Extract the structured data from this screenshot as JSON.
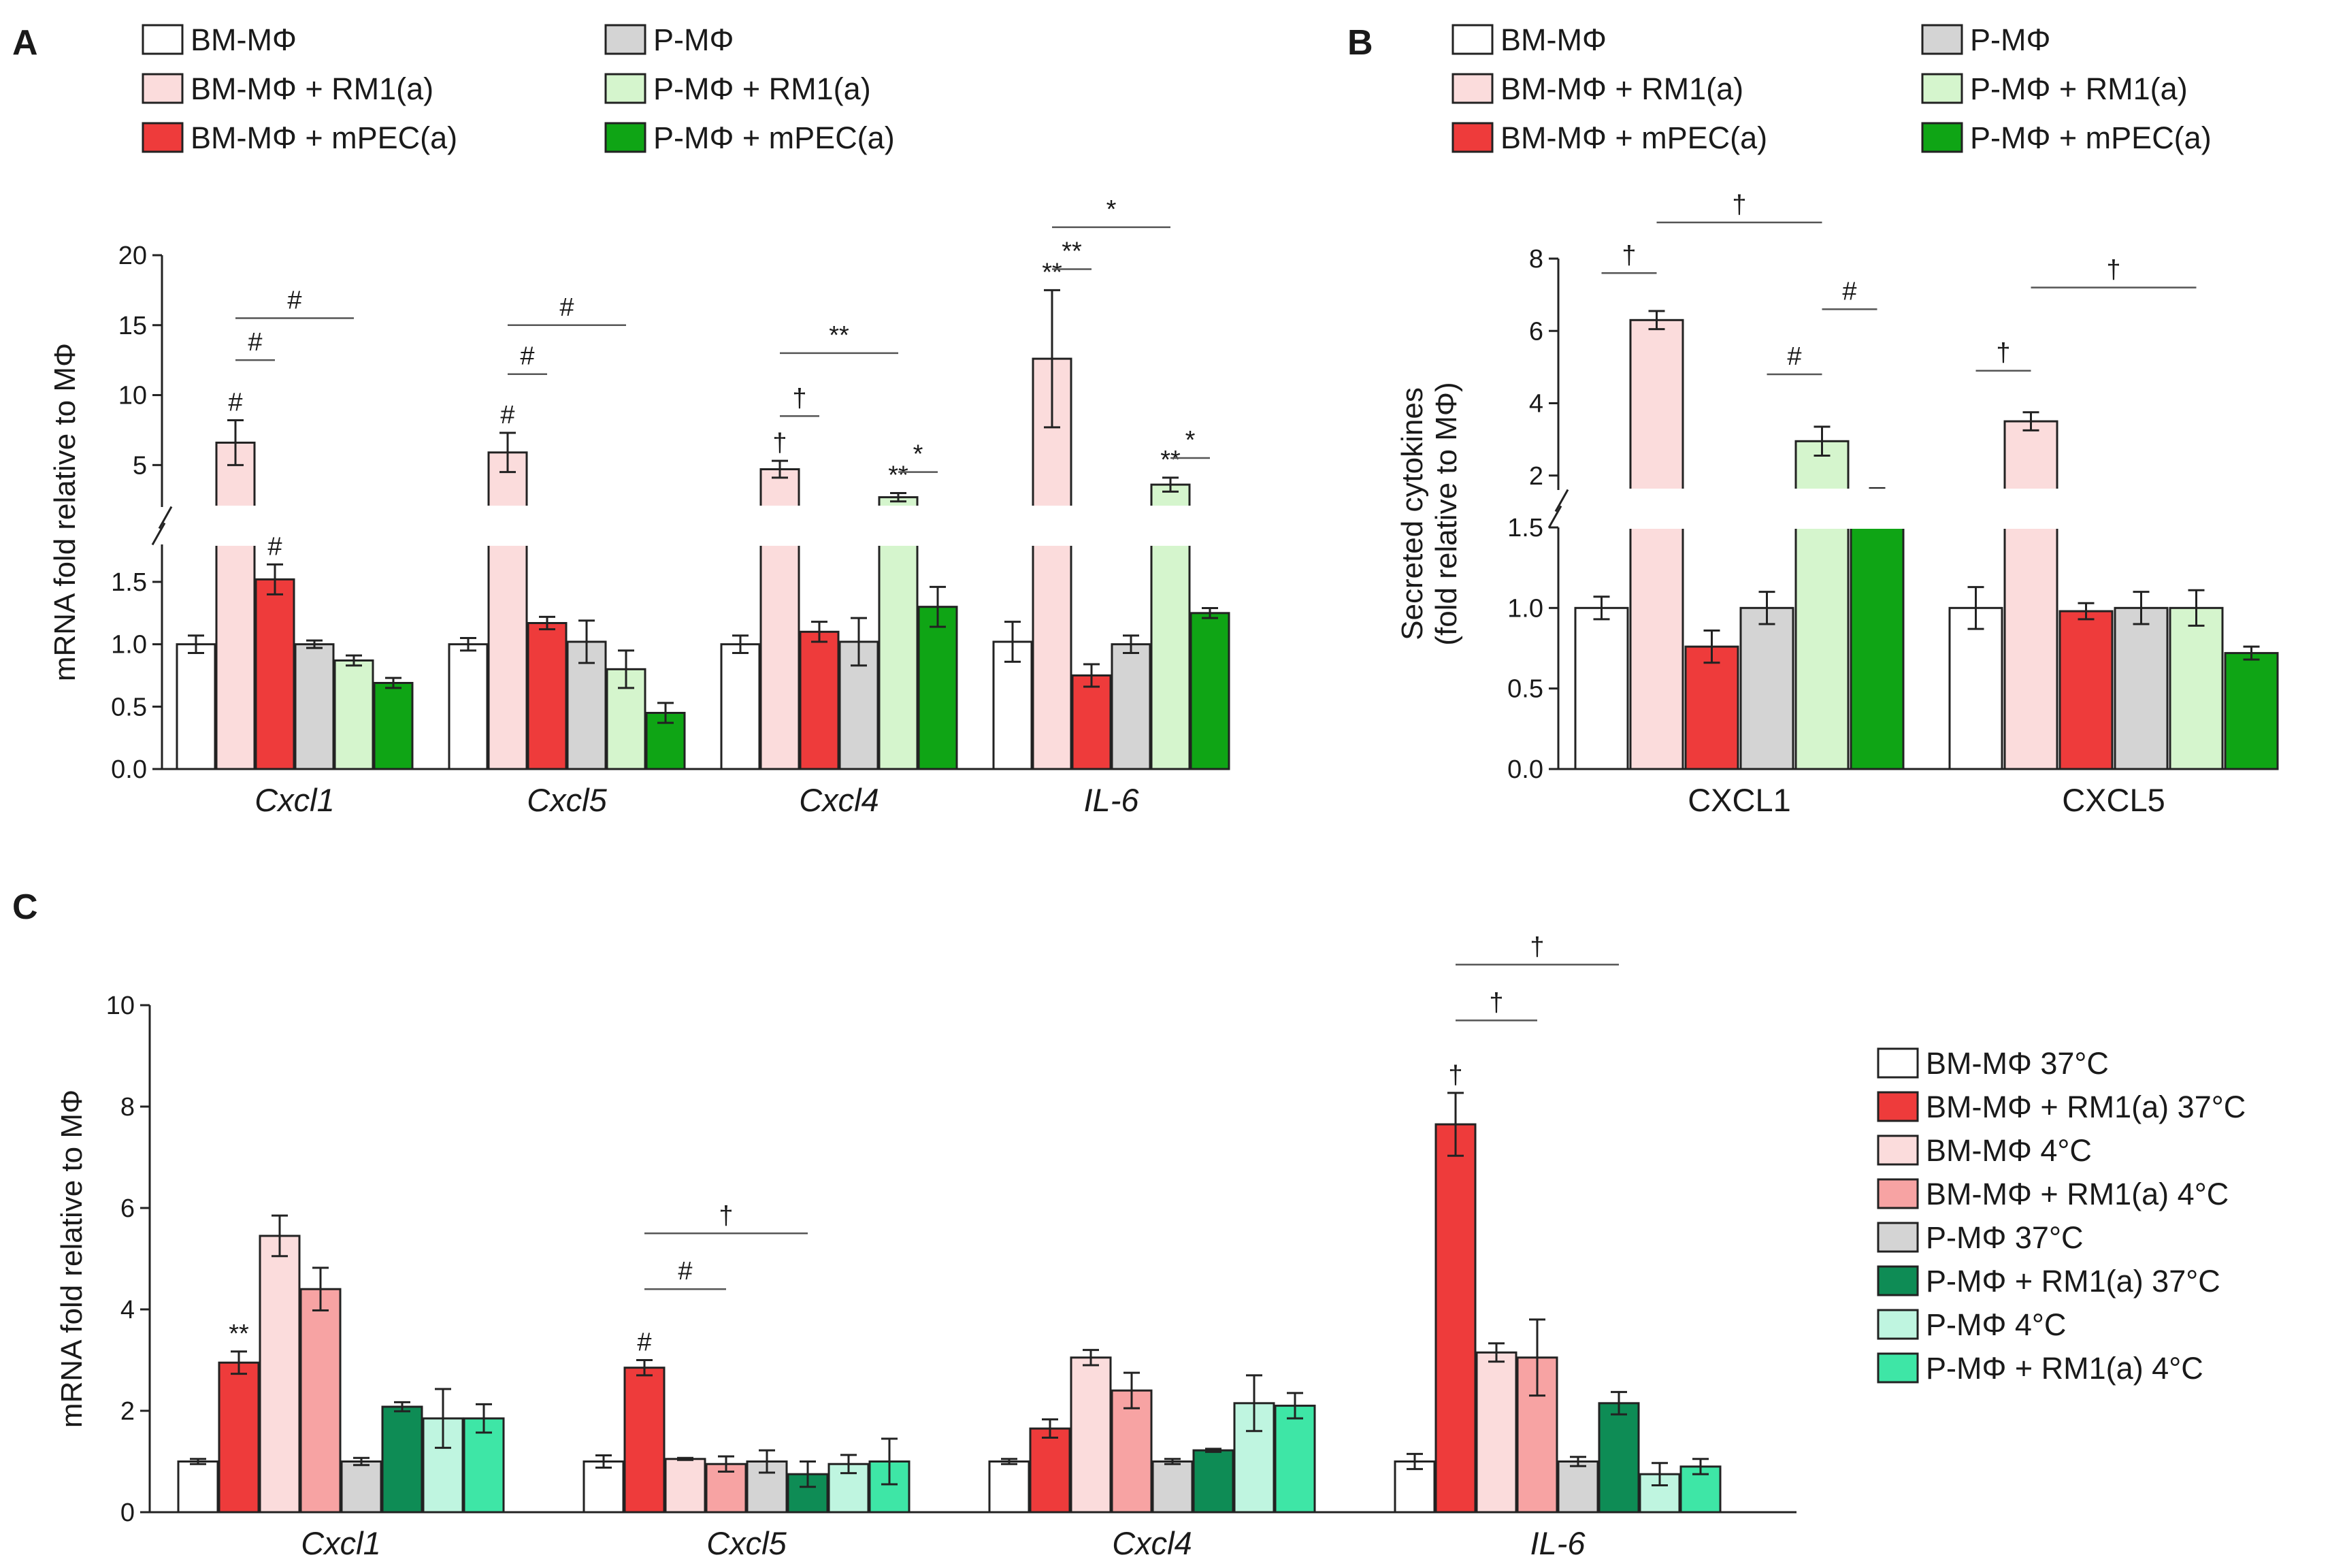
{
  "panels": {
    "A": {
      "label": "A"
    },
    "B": {
      "label": "B"
    },
    "C": {
      "label": "C"
    }
  },
  "legend_AB": [
    {
      "name": "BM-MΦ",
      "color": "#ffffff"
    },
    {
      "name": "BM-MΦ + RM1(a)",
      "color": "#fbdcdc"
    },
    {
      "name": "BM-MΦ + mPEC(a)",
      "color": "#ee3b3b"
    },
    {
      "name": "P-MΦ",
      "color": "#d4d4d4"
    },
    {
      "name": "P-MΦ + RM1(a)",
      "color": "#d5f5cd"
    },
    {
      "name": "P-MΦ + mPEC(a)",
      "color": "#0fa515"
    }
  ],
  "legend_C": [
    {
      "name": "BM-MΦ 37°C",
      "color": "#ffffff"
    },
    {
      "name": "BM-MΦ + RM1(a) 37°C",
      "color": "#ee3b3b"
    },
    {
      "name": "BM-MΦ 4°C",
      "color": "#fbdcdc"
    },
    {
      "name": "BM-MΦ + RM1(a) 4°C",
      "color": "#f7a3a3"
    },
    {
      "name": "P-MΦ 37°C",
      "color": "#d4d4d4"
    },
    {
      "name": "P-MΦ + RM1(a) 37°C",
      "color": "#0e8c55"
    },
    {
      "name": "P-MΦ 4°C",
      "color": "#bff5e0"
    },
    {
      "name": "P-MΦ + RM1(a) 4°C",
      "color": "#3ee6a6"
    }
  ],
  "chart_data": [
    {
      "panel": "A",
      "type": "bar",
      "ylabel": "mRNA fold relative to MΦ",
      "broken_axis": true,
      "ylim_lower": [
        0,
        1.8
      ],
      "ylim_upper": [
        2,
        20
      ],
      "yticks_lower": [
        "0.0",
        "0.5",
        "1.0",
        "1.5"
      ],
      "yticks_upper": [
        "5",
        "10",
        "15",
        "20"
      ],
      "categories": [
        "Cxcl1",
        "Cxcl5",
        "Cxcl4",
        "IL-6"
      ],
      "series": [
        {
          "name": "BM-MΦ",
          "values": [
            1.0,
            1.0,
            1.0,
            1.02
          ],
          "errors": [
            0.07,
            0.05,
            0.07,
            0.16
          ]
        },
        {
          "name": "BM-MΦ + RM1(a)",
          "values": [
            6.6,
            5.9,
            4.7,
            12.6
          ],
          "errors": [
            1.6,
            1.4,
            0.6,
            4.9
          ]
        },
        {
          "name": "BM-MΦ + mPEC(a)",
          "values": [
            1.52,
            1.17,
            1.1,
            0.75
          ],
          "errors": [
            0.12,
            0.05,
            0.08,
            0.09
          ]
        },
        {
          "name": "P-MΦ",
          "values": [
            1.0,
            1.02,
            1.02,
            1.0
          ],
          "errors": [
            0.03,
            0.17,
            0.19,
            0.07
          ]
        },
        {
          "name": "P-MΦ + RM1(a)",
          "values": [
            0.87,
            0.8,
            2.7,
            3.6
          ],
          "errors": [
            0.04,
            0.15,
            0.3,
            0.5
          ]
        },
        {
          "name": "P-MΦ + mPEC(a)",
          "values": [
            0.69,
            0.45,
            1.3,
            1.25
          ],
          "errors": [
            0.04,
            0.08,
            0.16,
            0.04
          ]
        }
      ],
      "bar_annotations": [
        {
          "category": 0,
          "series": 1,
          "text": "#"
        },
        {
          "category": 0,
          "series": 2,
          "text": "#"
        },
        {
          "category": 1,
          "series": 1,
          "text": "#"
        },
        {
          "category": 2,
          "series": 1,
          "text": "†"
        },
        {
          "category": 2,
          "series": 4,
          "text": "**"
        },
        {
          "category": 3,
          "series": 1,
          "text": "**"
        },
        {
          "category": 3,
          "series": 4,
          "text": "**"
        }
      ],
      "brackets": [
        {
          "category": 0,
          "from": 1,
          "to": 2,
          "value": 12.5,
          "text": "#"
        },
        {
          "category": 0,
          "from": 1,
          "to": 4,
          "value": 15.5,
          "text": "#"
        },
        {
          "category": 1,
          "from": 1,
          "to": 2,
          "value": 11.5,
          "text": "#"
        },
        {
          "category": 1,
          "from": 1,
          "to": 4,
          "value": 15.0,
          "text": "#"
        },
        {
          "category": 2,
          "from": 1,
          "to": 2,
          "value": 8.5,
          "text": "†"
        },
        {
          "category": 2,
          "from": 1,
          "to": 4,
          "value": 13.0,
          "text": "**"
        },
        {
          "category": 2,
          "from": 4,
          "to": 5,
          "value": 4.5,
          "text": "*"
        },
        {
          "category": 3,
          "from": 1,
          "to": 2,
          "value": 19.0,
          "text": "**"
        },
        {
          "category": 3,
          "from": 1,
          "to": 4,
          "value": 22.0,
          "text": "*"
        },
        {
          "category": 3,
          "from": 4,
          "to": 5,
          "value": 5.5,
          "text": "*"
        }
      ]
    },
    {
      "panel": "B",
      "type": "bar",
      "ylabel": "Secreted cytokines",
      "ylabel2": "(fold relative to MΦ)",
      "broken_axis": true,
      "ylim_lower": [
        0,
        1.5
      ],
      "ylim_upper": [
        1.6,
        8
      ],
      "yticks_lower": [
        "0.0",
        "0.5",
        "1.0",
        "1.5"
      ],
      "yticks_upper": [
        "2",
        "4",
        "6",
        "8"
      ],
      "categories": [
        "CXCL1",
        "CXCL5"
      ],
      "series": [
        {
          "name": "BM-MΦ",
          "values": [
            1.0,
            1.0
          ],
          "errors": [
            0.07,
            0.13
          ]
        },
        {
          "name": "BM-MΦ + RM1(a)",
          "values": [
            6.3,
            3.5
          ],
          "errors": [
            0.25,
            0.25
          ]
        },
        {
          "name": "BM-MΦ + mPEC(a)",
          "values": [
            0.76,
            0.98
          ],
          "errors": [
            0.1,
            0.05
          ]
        },
        {
          "name": "P-MΦ",
          "values": [
            1.0,
            1.0
          ],
          "errors": [
            0.1,
            0.1
          ]
        },
        {
          "name": "P-MΦ + RM1(a)",
          "values": [
            2.95,
            1.0
          ],
          "errors": [
            0.4,
            0.11
          ]
        },
        {
          "name": "P-MΦ + mPEC(a)",
          "values": [
            1.6,
            0.72
          ],
          "errors": [
            0.05,
            0.04
          ]
        }
      ],
      "brackets": [
        {
          "category": 0,
          "from": 0,
          "to": 1,
          "value": 7.6,
          "text": "†"
        },
        {
          "category": 0,
          "from": 1,
          "to": 4,
          "value": 9.0,
          "text": "†"
        },
        {
          "category": 0,
          "from": 3,
          "to": 4,
          "value": 4.8,
          "text": "#"
        },
        {
          "category": 0,
          "from": 4,
          "to": 5,
          "value": 6.6,
          "text": "#"
        },
        {
          "category": 1,
          "from": 0,
          "to": 1,
          "value": 4.9,
          "text": "†"
        },
        {
          "category": 1,
          "from": 1,
          "to": 4,
          "value": 7.2,
          "text": "†"
        }
      ]
    },
    {
      "panel": "C",
      "type": "bar",
      "ylabel": "mRNA fold relative to MΦ",
      "ylim": [
        0,
        10
      ],
      "yticks": [
        "0",
        "2",
        "4",
        "6",
        "8",
        "10"
      ],
      "categories": [
        "Cxcl1",
        "Cxcl5",
        "Cxcl4",
        "IL-6"
      ],
      "series": [
        {
          "name": "BM-MΦ 37°C",
          "values": [
            1.0,
            1.0,
            1.0,
            1.0
          ],
          "errors": [
            0.05,
            0.12,
            0.05,
            0.15
          ]
        },
        {
          "name": "BM-MΦ + RM1(a) 37°C",
          "values": [
            2.95,
            2.85,
            1.65,
            7.65
          ],
          "errors": [
            0.22,
            0.15,
            0.18,
            0.62
          ]
        },
        {
          "name": "BM-MΦ 4°C",
          "values": [
            5.45,
            1.05,
            3.05,
            3.15
          ],
          "errors": [
            0.4,
            0.02,
            0.15,
            0.18
          ]
        },
        {
          "name": "BM-MΦ + RM1(a) 4°C",
          "values": [
            4.4,
            0.95,
            2.4,
            3.05
          ],
          "errors": [
            0.42,
            0.15,
            0.35,
            0.75
          ]
        },
        {
          "name": "P-MΦ 37°C",
          "values": [
            1.0,
            1.0,
            1.0,
            1.0
          ],
          "errors": [
            0.07,
            0.22,
            0.05,
            0.09
          ]
        },
        {
          "name": "P-MΦ + RM1(a) 37°C",
          "values": [
            2.08,
            0.75,
            1.22,
            2.15
          ],
          "errors": [
            0.09,
            0.25,
            0.03,
            0.22
          ]
        },
        {
          "name": "P-MΦ 4°C",
          "values": [
            1.85,
            0.95,
            2.15,
            0.75
          ],
          "errors": [
            0.58,
            0.18,
            0.55,
            0.22
          ]
        },
        {
          "name": "P-MΦ + RM1(a) 4°C",
          "values": [
            1.85,
            1.0,
            2.1,
            0.9
          ],
          "errors": [
            0.28,
            0.45,
            0.25,
            0.15
          ]
        }
      ],
      "bar_annotations": [
        {
          "category": 0,
          "series": 1,
          "text": "**"
        },
        {
          "category": 1,
          "series": 1,
          "text": "#"
        },
        {
          "category": 3,
          "series": 1,
          "text": "†"
        }
      ],
      "brackets": [
        {
          "category": 1,
          "from": 1,
          "to": 3,
          "value": 4.4,
          "text": "#"
        },
        {
          "category": 1,
          "from": 1,
          "to": 5,
          "value": 5.5,
          "text": "†"
        },
        {
          "category": 3,
          "from": 1,
          "to": 3,
          "value": 9.7,
          "text": "†"
        },
        {
          "category": 3,
          "from": 1,
          "to": 5,
          "value": 10.8,
          "text": "†"
        }
      ]
    }
  ]
}
